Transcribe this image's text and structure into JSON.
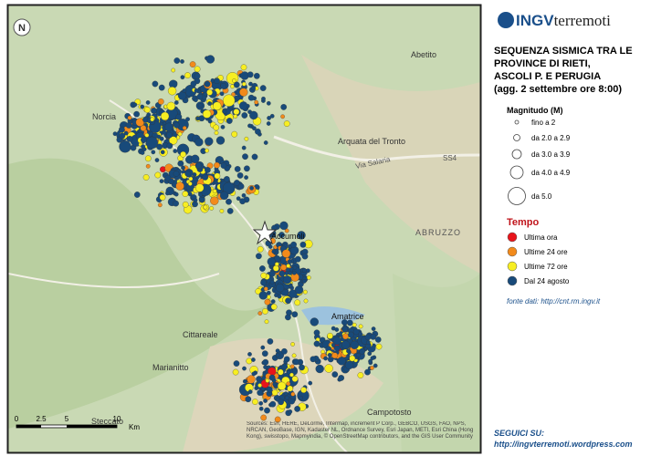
{
  "header": {
    "logo_bold": "INGV",
    "logo_rest": "terremoti",
    "title_lines": [
      "SEQUENZA SISMICA TRA LE",
      "PROVINCE DI RIETI,",
      "ASCOLI P. E PERUGIA",
      "(agg. 2 settembre ore 8:00)"
    ]
  },
  "legend": {
    "magnitude_title": "Magnitudo (M)",
    "magnitude_items": [
      "fino a 2",
      "da 2.0 a 2.9",
      "da 3.0 a 3.9",
      "da 4.0 a 4.9",
      "da 5.0"
    ],
    "time_title": "Tempo",
    "time_items": [
      {
        "label": "Ultima ora",
        "color": "#e8141b"
      },
      {
        "label": "Ultime 24 ore",
        "color": "#f28a1b"
      },
      {
        "label": "Ultime 72 ore",
        "color": "#f7ee22"
      },
      {
        "label": "Dal 24 agosto",
        "color": "#184a7a"
      }
    ],
    "source": "fonte dati: http://cnt.rm.ingv.it"
  },
  "follow": {
    "title": "SEGUICI SU:",
    "url": "http://ingvterremoti.wordpress.com"
  },
  "map": {
    "places": [
      "Norcia",
      "Arquata del Tronto",
      "Accumoli",
      "Amatrice",
      "Cittareale",
      "Marianitto",
      "Campotosto",
      "Abetito",
      "ABRUZZO",
      "Steccato",
      "Via Salaria",
      "SS4"
    ],
    "scale": {
      "ticks": [
        "0",
        "2.5",
        "5",
        "10"
      ],
      "unit": "Km"
    },
    "attribution": "Sources: Esri, HERE, DeLorme, Intermap, increment P Corp., GEBCO, USGS, FAO, NPS, NRCAN, GeoBase, IGN, Kadaster NL, Ordnance Survey, Esri Japan, METI, Esri China (Hong Kong), swisstopo, Mapmyindia, © OpenStreetMap contributors, and the GIS User Community"
  }
}
